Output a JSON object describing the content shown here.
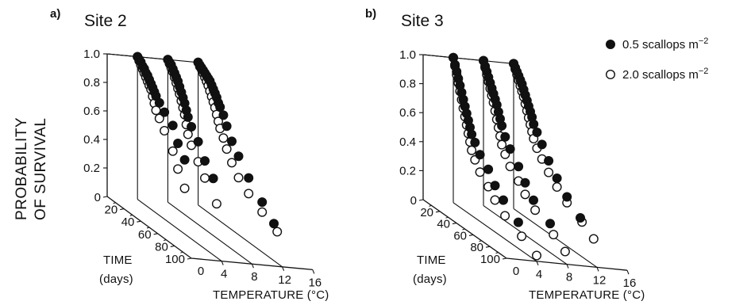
{
  "figure": {
    "ylabel_lines": [
      "PROBABILITY",
      "OF SURVIVAL"
    ],
    "legend": [
      {
        "label": "0.5 scallops m",
        "sup": "−2",
        "marker": "filled"
      },
      {
        "label": "2.0 scallops m",
        "sup": "−2",
        "marker": "open"
      }
    ],
    "colors": {
      "ink": "#111111",
      "open_fill": "#ffffff"
    }
  },
  "chart_data": [
    {
      "type": "scatter",
      "panel": "a)",
      "title": "Site 2",
      "ylabel": "PROBABILITY OF SURVIVAL",
      "time_label": [
        "TIME",
        "(days)"
      ],
      "temperature_label": "TEMPERATURE (°C)",
      "y_ticks": [
        "1.0",
        "0.8",
        "0.6",
        "0.4",
        "0.2"
      ],
      "time_ticks": [
        "0",
        "20",
        "40",
        "60",
        "80",
        "100"
      ],
      "temperature_ticks": [
        "4",
        "8",
        "12",
        "16"
      ],
      "ylim": [
        0,
        1
      ],
      "time_range": [
        0,
        100
      ],
      "temperature_range": [
        0,
        16
      ],
      "series": [
        {
          "name": "0.5 scallops m−2",
          "temperature": 4,
          "marker": "filled",
          "time": [
            0,
            2,
            4,
            6,
            8,
            10,
            12,
            14,
            16,
            18,
            20,
            22,
            26,
            32,
            42,
            48,
            56
          ],
          "survival": [
            1.0,
            0.99,
            0.98,
            0.96,
            0.95,
            0.93,
            0.92,
            0.9,
            0.88,
            0.86,
            0.84,
            0.82,
            0.79,
            0.75,
            0.7,
            0.6,
            0.52
          ]
        },
        {
          "name": "2.0 scallops m−2",
          "temperature": 4,
          "marker": "open",
          "time": [
            0,
            2,
            4,
            6,
            8,
            10,
            12,
            14,
            16,
            18,
            20,
            22,
            26,
            32,
            42,
            48,
            56
          ],
          "survival": [
            1.0,
            0.98,
            0.96,
            0.94,
            0.92,
            0.9,
            0.88,
            0.86,
            0.84,
            0.8,
            0.76,
            0.72,
            0.68,
            0.62,
            0.52,
            0.42,
            0.32
          ]
        },
        {
          "name": "0.5 scallops m−2",
          "temperature": 8,
          "marker": "filled",
          "time": [
            0,
            2,
            4,
            6,
            8,
            10,
            12,
            14,
            16,
            18,
            20,
            22,
            24,
            28,
            36,
            44,
            54
          ],
          "survival": [
            1.0,
            0.99,
            0.98,
            0.96,
            0.94,
            0.92,
            0.9,
            0.87,
            0.84,
            0.81,
            0.78,
            0.74,
            0.7,
            0.65,
            0.58,
            0.48,
            0.4
          ]
        },
        {
          "name": "2.0 scallops m−2",
          "temperature": 8,
          "marker": "open",
          "time": [
            0,
            2,
            4,
            6,
            8,
            10,
            12,
            14,
            16,
            18,
            20,
            22,
            24,
            28,
            36,
            44,
            58
          ],
          "survival": [
            1.0,
            0.98,
            0.96,
            0.94,
            0.91,
            0.88,
            0.85,
            0.82,
            0.78,
            0.74,
            0.7,
            0.64,
            0.58,
            0.52,
            0.44,
            0.36,
            0.24
          ]
        },
        {
          "name": "0.5 scallops m−2",
          "temperature": 12,
          "marker": "filled",
          "time": [
            0,
            2,
            4,
            6,
            8,
            10,
            12,
            14,
            16,
            18,
            20,
            22,
            24,
            26,
            30,
            34,
            40,
            48,
            60,
            76,
            90
          ],
          "survival": [
            1.0,
            0.99,
            0.98,
            0.97,
            0.96,
            0.95,
            0.94,
            0.93,
            0.91,
            0.89,
            0.87,
            0.85,
            0.82,
            0.8,
            0.76,
            0.7,
            0.62,
            0.55,
            0.45,
            0.35,
            0.26
          ]
        },
        {
          "name": "2.0 scallops m−2",
          "temperature": 12,
          "marker": "open",
          "time": [
            0,
            2,
            4,
            6,
            8,
            10,
            12,
            14,
            16,
            18,
            20,
            22,
            24,
            26,
            30,
            34,
            40,
            48,
            60,
            76,
            94
          ],
          "survival": [
            1.0,
            0.98,
            0.97,
            0.95,
            0.93,
            0.91,
            0.89,
            0.86,
            0.83,
            0.8,
            0.77,
            0.73,
            0.69,
            0.65,
            0.6,
            0.54,
            0.47,
            0.4,
            0.34,
            0.28,
            0.22
          ]
        }
      ]
    },
    {
      "type": "scatter",
      "panel": "b)",
      "title": "Site 3",
      "ylabel": "PROBABILITY OF SURVIVAL",
      "time_label": [
        "TIME",
        "(days)"
      ],
      "temperature_label": "TEMPERATURE (°C)",
      "y_ticks": [
        "1.0",
        "0.8",
        "0.6",
        "0.4",
        "0.2"
      ],
      "time_ticks": [
        "0",
        "20",
        "40",
        "60",
        "80",
        "100"
      ],
      "temperature_ticks": [
        "4",
        "8",
        "12",
        "16"
      ],
      "ylim": [
        0,
        1
      ],
      "time_range": [
        0,
        100
      ],
      "temperature_range": [
        0,
        16
      ],
      "series": [
        {
          "name": "0.5 scallops m−2",
          "temperature": 4,
          "marker": "filled",
          "time": [
            0,
            2,
            4,
            6,
            8,
            10,
            12,
            14,
            16,
            18,
            20,
            22,
            26,
            32,
            42,
            50,
            60,
            78
          ],
          "survival": [
            1.0,
            0.96,
            0.92,
            0.88,
            0.84,
            0.8,
            0.76,
            0.72,
            0.68,
            0.64,
            0.6,
            0.56,
            0.52,
            0.46,
            0.4,
            0.32,
            0.26,
            0.18
          ]
        },
        {
          "name": "2.0 scallops m−2",
          "temperature": 4,
          "marker": "open",
          "time": [
            0,
            2,
            4,
            6,
            8,
            10,
            12,
            14,
            16,
            18,
            20,
            22,
            26,
            32,
            42,
            50,
            62,
            82,
            100
          ],
          "survival": [
            1.0,
            0.95,
            0.9,
            0.85,
            0.8,
            0.75,
            0.7,
            0.65,
            0.6,
            0.55,
            0.5,
            0.45,
            0.4,
            0.34,
            0.28,
            0.22,
            0.16,
            0.1,
            0.04
          ]
        },
        {
          "name": "0.5 scallops m−2",
          "temperature": 8,
          "marker": "filled",
          "time": [
            0,
            2,
            4,
            6,
            8,
            10,
            12,
            14,
            16,
            18,
            20,
            22,
            26,
            32,
            42,
            50,
            60,
            80
          ],
          "survival": [
            1.0,
            0.97,
            0.94,
            0.91,
            0.88,
            0.85,
            0.82,
            0.79,
            0.76,
            0.72,
            0.68,
            0.64,
            0.58,
            0.52,
            0.44,
            0.36,
            0.28,
            0.2
          ]
        },
        {
          "name": "2.0 scallops m−2",
          "temperature": 8,
          "marker": "open",
          "time": [
            0,
            2,
            4,
            6,
            8,
            10,
            12,
            14,
            16,
            18,
            20,
            22,
            26,
            32,
            42,
            50,
            62,
            84,
            98
          ],
          "survival": [
            1.0,
            0.96,
            0.92,
            0.88,
            0.84,
            0.8,
            0.76,
            0.71,
            0.66,
            0.61,
            0.56,
            0.51,
            0.46,
            0.4,
            0.34,
            0.28,
            0.22,
            0.14,
            0.08
          ]
        },
        {
          "name": "0.5 scallops m−2",
          "temperature": 12,
          "marker": "filled",
          "time": [
            0,
            2,
            4,
            6,
            8,
            10,
            12,
            14,
            16,
            18,
            20,
            22,
            24,
            28,
            34,
            42,
            52,
            64,
            80
          ],
          "survival": [
            1.0,
            0.98,
            0.96,
            0.94,
            0.92,
            0.9,
            0.87,
            0.84,
            0.81,
            0.78,
            0.75,
            0.72,
            0.68,
            0.64,
            0.58,
            0.5,
            0.42,
            0.34,
            0.26
          ]
        },
        {
          "name": "2.0 scallops m−2",
          "temperature": 12,
          "marker": "open",
          "time": [
            0,
            2,
            4,
            6,
            8,
            10,
            12,
            14,
            16,
            18,
            20,
            22,
            24,
            28,
            34,
            42,
            52,
            64,
            82,
            96
          ],
          "survival": [
            1.0,
            0.97,
            0.94,
            0.91,
            0.88,
            0.85,
            0.82,
            0.78,
            0.74,
            0.7,
            0.66,
            0.62,
            0.58,
            0.53,
            0.48,
            0.42,
            0.36,
            0.3,
            0.24,
            0.18
          ]
        }
      ]
    }
  ]
}
